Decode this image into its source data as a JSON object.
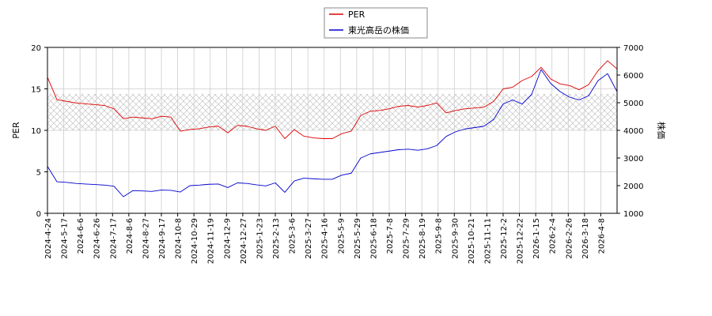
{
  "chart_data": {
    "type": "line",
    "title": "",
    "xlabel": "",
    "ylabel_left": "PER",
    "ylabel_right": "株価",
    "ylim_left": [
      0,
      20
    ],
    "ylim_right": [
      1000,
      7000
    ],
    "yticks_left": [
      "0",
      "5",
      "10",
      "15",
      "20"
    ],
    "yticks_right": [
      "1000",
      "2000",
      "3000",
      "4000",
      "5000",
      "6000",
      "7000"
    ],
    "shaded_band_left": [
      10,
      14.4
    ],
    "grid": true,
    "legend_position": "top-center",
    "x_tick_labels": [
      "2024-4-24",
      "2024-5-17",
      "2024-6-6",
      "2024-6-26",
      "2024-7-17",
      "2024-8-6",
      "2024-8-27",
      "2024-9-17",
      "2024-10-8",
      "2024-10-29",
      "2024-11-19",
      "2024-12-9",
      "2024-12-27",
      "2025-1-23",
      "2025-2-13",
      "2025-3-6",
      "2025-3-27",
      "2025-4-16",
      "2025-5-9",
      "2025-5-29",
      "2025-6-18",
      "2025-7-8",
      "2025-7-29",
      "2025-8-19",
      "2025-9-8",
      "2025-9-30",
      "2025-10-21",
      "2025-11-11",
      "2025-12-2",
      "2025-12-22",
      "2026-1-15",
      "2026-2-4",
      "2026-2-26",
      "2026-3-18",
      "2026-4-8"
    ],
    "series": [
      {
        "name": "PER",
        "color": "#dd0000",
        "axis": "left",
        "values": [
          16.4,
          13.7,
          13.5,
          13.3,
          13.2,
          13.1,
          13.0,
          12.6,
          11.4,
          11.6,
          11.5,
          11.4,
          11.7,
          11.6,
          9.9,
          10.1,
          10.2,
          10.4,
          10.5,
          9.7,
          10.6,
          10.5,
          10.2,
          10.0,
          10.5,
          9.0,
          10.1,
          9.3,
          9.1,
          9.0,
          9.0,
          9.6,
          9.9,
          11.8,
          12.3,
          12.4,
          12.6,
          12.9,
          13.0,
          12.8,
          13.0,
          13.3,
          12.1,
          12.4,
          12.6,
          12.7,
          12.8,
          13.5,
          15.0,
          15.2,
          16.0,
          16.5,
          17.6,
          16.2,
          15.6,
          15.4,
          14.9,
          15.5,
          17.2,
          18.4,
          17.4
        ]
      },
      {
        "name": "東光高岳の株価",
        "color": "#0000cc",
        "axis": "right",
        "values": [
          2700,
          2140,
          2120,
          2080,
          2060,
          2040,
          2020,
          1980,
          1600,
          1820,
          1810,
          1790,
          1840,
          1830,
          1770,
          2000,
          2020,
          2050,
          2060,
          1930,
          2100,
          2080,
          2030,
          1990,
          2100,
          1760,
          2170,
          2270,
          2250,
          2230,
          2230,
          2380,
          2450,
          3000,
          3150,
          3200,
          3250,
          3300,
          3320,
          3280,
          3330,
          3450,
          3780,
          3950,
          4050,
          4100,
          4150,
          4400,
          4950,
          5100,
          4950,
          5300,
          6200,
          5700,
          5400,
          5200,
          5100,
          5250,
          5800,
          6050,
          5400
        ]
      }
    ]
  },
  "legend": {
    "items": [
      {
        "label": "PER",
        "color": "#dd0000"
      },
      {
        "label": "東光高岳の株価",
        "color": "#0000cc"
      }
    ]
  }
}
